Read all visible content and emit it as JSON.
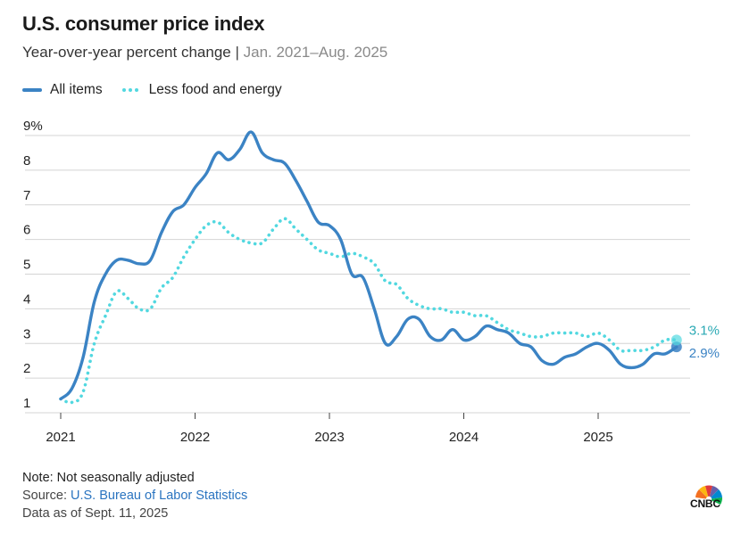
{
  "header": {
    "title": "U.S. consumer price index",
    "subtitle": "Year-over-year percent change",
    "separator": "|",
    "range": "Jan. 2021–Aug. 2025"
  },
  "legend": [
    {
      "label": "All items",
      "color": "#3b83c4",
      "style": "solid"
    },
    {
      "label": "Less food and energy",
      "color": "#52d8e0",
      "style": "dotted"
    }
  ],
  "footer": {
    "note": "Note: Not seasonally adjusted",
    "source_prefix": "Source: ",
    "source_link": "U.S. Bureau of Labor Statistics",
    "data_as_of": "Data as of Sept. 11, 2025"
  },
  "logo": {
    "text": "CNBC",
    "icon": "peacock-icon"
  },
  "chart_data": {
    "type": "line",
    "x_start": "2021-01",
    "x_end": "2025-08",
    "ylim": [
      1,
      9
    ],
    "yticks": [
      1,
      2,
      3,
      4,
      5,
      6,
      7,
      8,
      9
    ],
    "ytick_labels": [
      "1",
      "2",
      "3",
      "4",
      "5",
      "6",
      "7",
      "8",
      "9%"
    ],
    "xticks": [
      "2021",
      "2022",
      "2023",
      "2024",
      "2025"
    ],
    "grid": "horizontal",
    "legend_position": "top-left",
    "series": [
      {
        "name": "All items",
        "color": "#3b83c4",
        "style": "solid",
        "end_label": "2.9%",
        "values": [
          1.4,
          1.7,
          2.6,
          4.2,
          5.0,
          5.4,
          5.4,
          5.3,
          5.4,
          6.2,
          6.8,
          7.0,
          7.5,
          7.9,
          8.5,
          8.3,
          8.6,
          9.1,
          8.5,
          8.3,
          8.2,
          7.7,
          7.1,
          6.5,
          6.4,
          6.0,
          5.0,
          4.9,
          4.0,
          3.0,
          3.2,
          3.7,
          3.7,
          3.2,
          3.1,
          3.4,
          3.1,
          3.2,
          3.5,
          3.4,
          3.3,
          3.0,
          2.9,
          2.5,
          2.4,
          2.6,
          2.7,
          2.9,
          3.0,
          2.8,
          2.4,
          2.3,
          2.4,
          2.7,
          2.7,
          2.9
        ]
      },
      {
        "name": "Less food and energy",
        "color": "#52d8e0",
        "style": "dotted",
        "end_label": "3.1%",
        "values": [
          1.4,
          1.3,
          1.6,
          3.0,
          3.8,
          4.5,
          4.3,
          4.0,
          4.0,
          4.6,
          4.9,
          5.5,
          6.0,
          6.4,
          6.5,
          6.2,
          6.0,
          5.9,
          5.9,
          6.3,
          6.6,
          6.3,
          6.0,
          5.7,
          5.6,
          5.5,
          5.6,
          5.5,
          5.3,
          4.8,
          4.7,
          4.3,
          4.1,
          4.0,
          4.0,
          3.9,
          3.9,
          3.8,
          3.8,
          3.6,
          3.4,
          3.3,
          3.2,
          3.2,
          3.3,
          3.3,
          3.3,
          3.2,
          3.3,
          3.1,
          2.8,
          2.8,
          2.8,
          2.9,
          3.1,
          3.1
        ]
      }
    ]
  }
}
